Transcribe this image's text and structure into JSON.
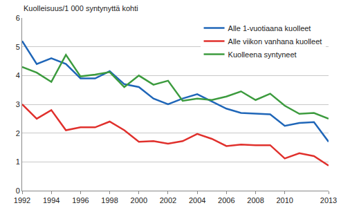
{
  "chart_data": {
    "type": "line",
    "ylabel": "Kuolleisuus/1 000 syntynyttä kohti",
    "x": [
      1992,
      1993,
      1994,
      1995,
      1996,
      1997,
      1998,
      1999,
      2000,
      2001,
      2002,
      2003,
      2004,
      2005,
      2006,
      2007,
      2008,
      2009,
      2010,
      2011,
      2012,
      2013
    ],
    "series": [
      {
        "name": "Alle 1-vuotiaana kuolleet",
        "color": "#1f66b8",
        "values": [
          5.2,
          4.4,
          4.6,
          4.4,
          3.9,
          3.9,
          4.15,
          3.7,
          3.6,
          3.2,
          3.0,
          3.2,
          3.35,
          3.1,
          2.85,
          2.7,
          2.67,
          2.65,
          2.25,
          2.35,
          2.38,
          1.7
        ]
      },
      {
        "name": "Alle viikon vanhana kuolleet",
        "color": "#e0302c",
        "values": [
          3.0,
          2.5,
          2.8,
          2.1,
          2.2,
          2.2,
          2.4,
          2.1,
          1.7,
          1.72,
          1.63,
          1.72,
          1.97,
          1.8,
          1.55,
          1.6,
          1.58,
          1.58,
          1.12,
          1.3,
          1.2,
          0.87
        ]
      },
      {
        "name": "Kuolleena syntyneet",
        "color": "#3c9b3e",
        "values": [
          4.3,
          4.1,
          3.78,
          4.72,
          3.97,
          4.03,
          4.12,
          3.6,
          4.0,
          3.68,
          3.82,
          3.12,
          3.2,
          3.15,
          3.27,
          3.45,
          3.15,
          3.37,
          2.95,
          2.67,
          2.7,
          2.5
        ]
      }
    ],
    "xlim": [
      1992,
      2013
    ],
    "xticks": [
      1992,
      1994,
      1996,
      1998,
      2000,
      2002,
      2004,
      2006,
      2008,
      2010,
      2013
    ],
    "ylim": [
      0,
      6
    ],
    "yticks": [
      0,
      1,
      2,
      3,
      4,
      5,
      6
    ],
    "grid": true,
    "legend": "upper right"
  }
}
